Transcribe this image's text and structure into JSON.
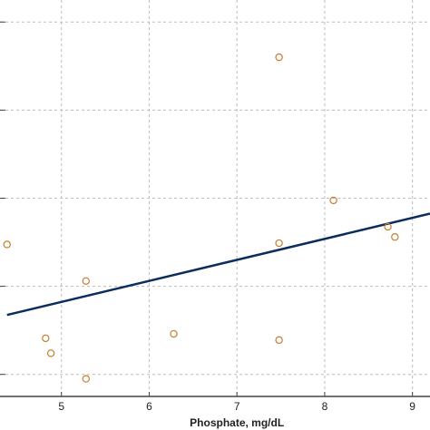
{
  "chart_data": {
    "type": "scatter",
    "title": "",
    "xlabel": "Phosphate, mg/dL",
    "ylabel": "",
    "xlim": [
      4.3,
      9.2
    ],
    "ylim": [
      0.0,
      9.0
    ],
    "x_ticks": [
      5,
      6,
      7,
      8,
      9
    ],
    "x_tick_labels": [
      "5",
      "6",
      "7",
      "8",
      "9"
    ],
    "y_gridlines": [
      0.5,
      2.5,
      4.5,
      6.5,
      8.5
    ],
    "grid": true,
    "legend": "none",
    "points": [
      {
        "x": 4.38,
        "y": 3.45
      },
      {
        "x": 4.82,
        "y": 1.32
      },
      {
        "x": 4.88,
        "y": 0.98
      },
      {
        "x": 5.28,
        "y": 2.62
      },
      {
        "x": 5.28,
        "y": 0.4
      },
      {
        "x": 6.28,
        "y": 1.42
      },
      {
        "x": 7.48,
        "y": 1.28
      },
      {
        "x": 7.48,
        "y": 3.48
      },
      {
        "x": 7.48,
        "y": 7.7
      },
      {
        "x": 8.1,
        "y": 4.45
      },
      {
        "x": 8.72,
        "y": 3.85
      },
      {
        "x": 8.8,
        "y": 3.62
      }
    ],
    "trendline": {
      "x": [
        4.38,
        9.2
      ],
      "y": [
        1.85,
        4.15
      ]
    },
    "colors": {
      "points": "#c87c2e",
      "trendline": "#0b2d5c",
      "grid": "#bbbbbb",
      "axis": "#444444"
    }
  }
}
